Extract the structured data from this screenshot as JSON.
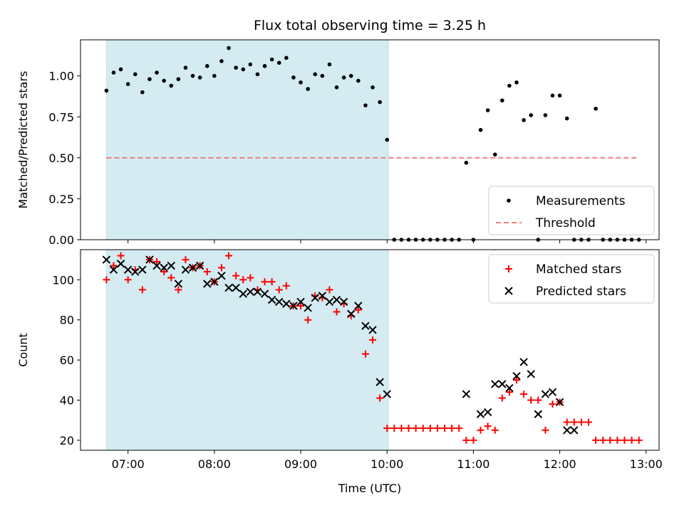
{
  "figure_title": "Flux total observing time = 3.25 h",
  "chart_data": [
    {
      "type": "scatter",
      "panel": "top",
      "title": "Flux total observing time = 3.25 h",
      "xlabel": "",
      "ylabel": "Matched/Predicted stars",
      "x_unit": "hours UTC",
      "xlim": [
        6.45,
        13.15
      ],
      "ylim": [
        0.0,
        1.22
      ],
      "yticks": [
        0.0,
        0.25,
        0.5,
        0.75,
        1.0
      ],
      "ytick_labels": [
        "0.00",
        "0.25",
        "0.50",
        "0.75",
        "1.00"
      ],
      "xticks": [
        7,
        8,
        9,
        10,
        11,
        12,
        13
      ],
      "shaded_region": {
        "x_start": "06:45",
        "x_end": "10:01",
        "color": "#add8e6"
      },
      "legend_position": "lower-right",
      "series": [
        {
          "name": "Measurements",
          "marker": "dot",
          "color": "#000000",
          "x": [
            "06:45",
            "06:50",
            "06:55",
            "07:00",
            "07:05",
            "07:10",
            "07:15",
            "07:20",
            "07:25",
            "07:30",
            "07:35",
            "07:40",
            "07:45",
            "07:50",
            "07:55",
            "08:00",
            "08:05",
            "08:10",
            "08:15",
            "08:20",
            "08:25",
            "08:30",
            "08:35",
            "08:40",
            "08:45",
            "08:50",
            "08:55",
            "09:00",
            "09:05",
            "09:10",
            "09:15",
            "09:20",
            "09:25",
            "09:30",
            "09:35",
            "09:40",
            "09:45",
            "09:50",
            "09:55",
            "10:00",
            "10:05",
            "10:10",
            "10:15",
            "10:20",
            "10:25",
            "10:30",
            "10:35",
            "10:40",
            "10:45",
            "10:50",
            "10:55",
            "11:00",
            "11:05",
            "11:10",
            "11:15",
            "11:20",
            "11:25",
            "11:30",
            "11:35",
            "11:40",
            "11:45",
            "11:50",
            "11:55",
            "12:00",
            "12:05",
            "12:10",
            "12:15",
            "12:20",
            "12:25",
            "12:30",
            "12:35",
            "12:40",
            "12:45",
            "12:50",
            "12:55"
          ],
          "y": [
            0.91,
            1.02,
            1.04,
            0.95,
            1.01,
            0.9,
            0.98,
            1.02,
            0.97,
            0.94,
            0.98,
            1.05,
            1.0,
            0.99,
            1.06,
            1.0,
            1.09,
            1.17,
            1.05,
            1.04,
            1.07,
            1.01,
            1.06,
            1.1,
            1.08,
            1.11,
            0.99,
            0.96,
            0.92,
            1.01,
            1.0,
            1.07,
            0.93,
            0.99,
            1.0,
            0.97,
            0.82,
            0.93,
            0.84,
            0.61,
            0.0,
            0.0,
            0.0,
            0.0,
            0.0,
            0.0,
            0.0,
            0.0,
            0.0,
            0.0,
            0.47,
            0.0,
            0.67,
            0.79,
            0.52,
            0.85,
            0.94,
            0.96,
            0.73,
            0.76,
            0.0,
            0.76,
            0.88,
            0.88,
            0.74,
            0.0,
            0.0,
            0.0,
            0.8,
            0.0,
            0.0,
            0.0,
            0.0,
            0.0,
            0.0
          ]
        },
        {
          "name": "Threshold",
          "marker": "dashed-line",
          "color": "#f08080",
          "x": [
            "06:45",
            "12:55"
          ],
          "y": [
            0.5,
            0.5
          ]
        }
      ]
    },
    {
      "type": "scatter",
      "panel": "bottom",
      "title": "",
      "xlabel": "Time (UTC)",
      "ylabel": "Count",
      "x_unit": "hours UTC",
      "xlim": [
        6.45,
        13.15
      ],
      "ylim": [
        15,
        115
      ],
      "yticks": [
        20,
        40,
        60,
        80,
        100
      ],
      "ytick_labels": [
        "20",
        "40",
        "60",
        "80",
        "100"
      ],
      "xticks": [
        7,
        8,
        9,
        10,
        11,
        12,
        13
      ],
      "xtick_labels": [
        "07:00",
        "08:00",
        "09:00",
        "10:00",
        "11:00",
        "12:00",
        "13:00"
      ],
      "shaded_region": {
        "x_start": "06:45",
        "x_end": "10:01",
        "color": "#add8e6"
      },
      "legend_position": "top-right",
      "series": [
        {
          "name": "Matched stars",
          "marker": "plus",
          "color": "#ff0000",
          "x": [
            "06:45",
            "06:50",
            "06:55",
            "07:00",
            "07:05",
            "07:10",
            "07:15",
            "07:20",
            "07:25",
            "07:30",
            "07:35",
            "07:40",
            "07:45",
            "07:50",
            "07:55",
            "08:00",
            "08:05",
            "08:10",
            "08:15",
            "08:20",
            "08:25",
            "08:30",
            "08:35",
            "08:40",
            "08:45",
            "08:50",
            "08:55",
            "09:00",
            "09:05",
            "09:10",
            "09:15",
            "09:20",
            "09:25",
            "09:30",
            "09:35",
            "09:40",
            "09:45",
            "09:50",
            "09:55",
            "10:00",
            "10:05",
            "10:10",
            "10:15",
            "10:20",
            "10:25",
            "10:30",
            "10:35",
            "10:40",
            "10:45",
            "10:50",
            "10:55",
            "11:00",
            "11:05",
            "11:10",
            "11:15",
            "11:20",
            "11:25",
            "11:30",
            "11:35",
            "11:40",
            "11:45",
            "11:50",
            "11:55",
            "12:00",
            "12:05",
            "12:10",
            "12:15",
            "12:20",
            "12:25",
            "12:30",
            "12:35",
            "12:40",
            "12:45",
            "12:50",
            "12:55"
          ],
          "y": [
            100,
            107,
            112,
            100,
            105,
            95,
            110,
            109,
            104,
            101,
            95,
            110,
            106,
            107,
            104,
            99,
            106,
            112,
            102,
            100,
            101,
            95,
            99,
            99,
            95,
            97,
            87,
            87,
            80,
            92,
            91,
            95,
            84,
            88,
            82,
            85,
            63,
            70,
            41,
            26,
            26,
            26,
            26,
            26,
            26,
            26,
            26,
            26,
            26,
            26,
            20,
            20,
            25,
            27,
            25,
            41,
            44,
            50,
            43,
            40,
            40,
            25,
            38,
            39,
            29,
            29,
            29,
            29,
            20,
            20,
            20,
            20,
            20,
            20,
            20
          ]
        },
        {
          "name": "Predicted stars",
          "marker": "x",
          "color": "#000000",
          "x": [
            "06:45",
            "06:50",
            "06:55",
            "07:00",
            "07:05",
            "07:10",
            "07:15",
            "07:20",
            "07:25",
            "07:30",
            "07:35",
            "07:40",
            "07:45",
            "07:50",
            "07:55",
            "08:00",
            "08:05",
            "08:10",
            "08:15",
            "08:20",
            "08:25",
            "08:30",
            "08:35",
            "08:40",
            "08:45",
            "08:50",
            "08:55",
            "09:00",
            "09:05",
            "09:10",
            "09:15",
            "09:20",
            "09:25",
            "09:30",
            "09:35",
            "09:40",
            "09:45",
            "09:50",
            "09:55",
            "10:00",
            "10:55",
            "11:05",
            "11:10",
            "11:15",
            "11:20",
            "11:25",
            "11:30",
            "11:35",
            "11:40",
            "11:45",
            "11:50",
            "11:55",
            "12:00",
            "12:05",
            "12:10"
          ],
          "y": [
            110,
            105,
            108,
            105,
            104,
            105,
            110,
            107,
            106,
            107,
            98,
            105,
            106,
            107,
            98,
            99,
            102,
            96,
            96,
            93,
            94,
            94,
            93,
            90,
            89,
            88,
            87,
            89,
            86,
            91,
            92,
            89,
            90,
            89,
            83,
            87,
            77,
            75,
            49,
            43,
            43,
            33,
            34,
            48,
            48,
            46,
            52,
            59,
            53,
            33,
            43,
            44,
            39,
            25,
            25
          ]
        }
      ]
    }
  ]
}
